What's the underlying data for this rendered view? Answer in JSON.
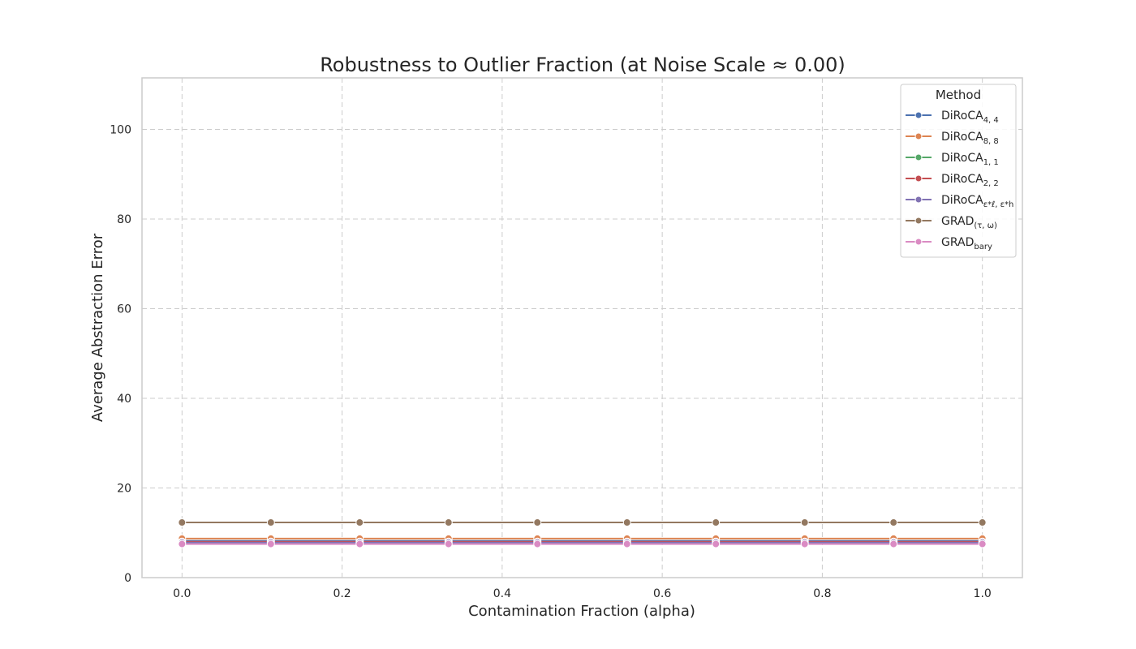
{
  "chart_data": {
    "type": "line",
    "title": "Robustness to Outlier Fraction (at Noise Scale ≈ 0.00)",
    "xlabel": "Contamination Fraction (alpha)",
    "ylabel": "Average Abstraction Error",
    "xlim": [
      -0.05,
      1.05
    ],
    "ylim": [
      0,
      111.5
    ],
    "xticks": [
      0.0,
      0.2,
      0.4,
      0.6,
      0.8,
      1.0
    ],
    "xtick_labels": [
      "0.0",
      "0.2",
      "0.4",
      "0.6",
      "0.8",
      "1.0"
    ],
    "yticks": [
      0,
      20,
      40,
      60,
      80,
      100
    ],
    "ytick_labels": [
      "0",
      "20",
      "40",
      "60",
      "80",
      "100"
    ],
    "grid": true,
    "legend_title": "Method",
    "legend_position": "top-right",
    "x": [
      0.0,
      0.111,
      0.222,
      0.333,
      0.444,
      0.556,
      0.667,
      0.778,
      0.889,
      1.0
    ],
    "series": [
      {
        "name": "DiRoCA",
        "subscript": "4, 4",
        "color": "#4c72b0",
        "values": [
          8.2,
          8.2,
          8.2,
          8.2,
          8.2,
          8.2,
          8.2,
          8.2,
          8.2,
          8.2
        ]
      },
      {
        "name": "DiRoCA",
        "subscript": "8, 8",
        "color": "#dd8452",
        "values": [
          8.7,
          8.7,
          8.7,
          8.7,
          8.7,
          8.7,
          8.7,
          8.7,
          8.7,
          8.7
        ]
      },
      {
        "name": "DiRoCA",
        "subscript": "1, 1",
        "color": "#55a868",
        "values": [
          7.9,
          7.9,
          7.9,
          7.9,
          7.9,
          7.9,
          7.9,
          7.9,
          7.9,
          7.9
        ]
      },
      {
        "name": "DiRoCA",
        "subscript": "2, 2",
        "color": "#c44e52",
        "values": [
          8.0,
          8.0,
          8.0,
          8.0,
          8.0,
          8.0,
          8.0,
          8.0,
          8.0,
          8.0
        ]
      },
      {
        "name": "DiRoCA",
        "subscript": "ε*ℓ, ε*h",
        "color": "#8172b3",
        "values": [
          7.8,
          7.8,
          7.8,
          7.8,
          7.8,
          7.8,
          7.8,
          7.8,
          7.8,
          7.8
        ]
      },
      {
        "name": "GRAD",
        "subscript": "(τ, ω)",
        "color": "#937860",
        "values": [
          12.3,
          12.3,
          12.3,
          12.3,
          12.3,
          12.3,
          12.3,
          12.3,
          12.3,
          12.3
        ]
      },
      {
        "name": "GRAD",
        "subscript": "bary",
        "color": "#da8bc3",
        "values": [
          7.5,
          7.5,
          7.5,
          7.5,
          7.5,
          7.5,
          7.5,
          7.5,
          7.5,
          7.5
        ]
      }
    ]
  }
}
